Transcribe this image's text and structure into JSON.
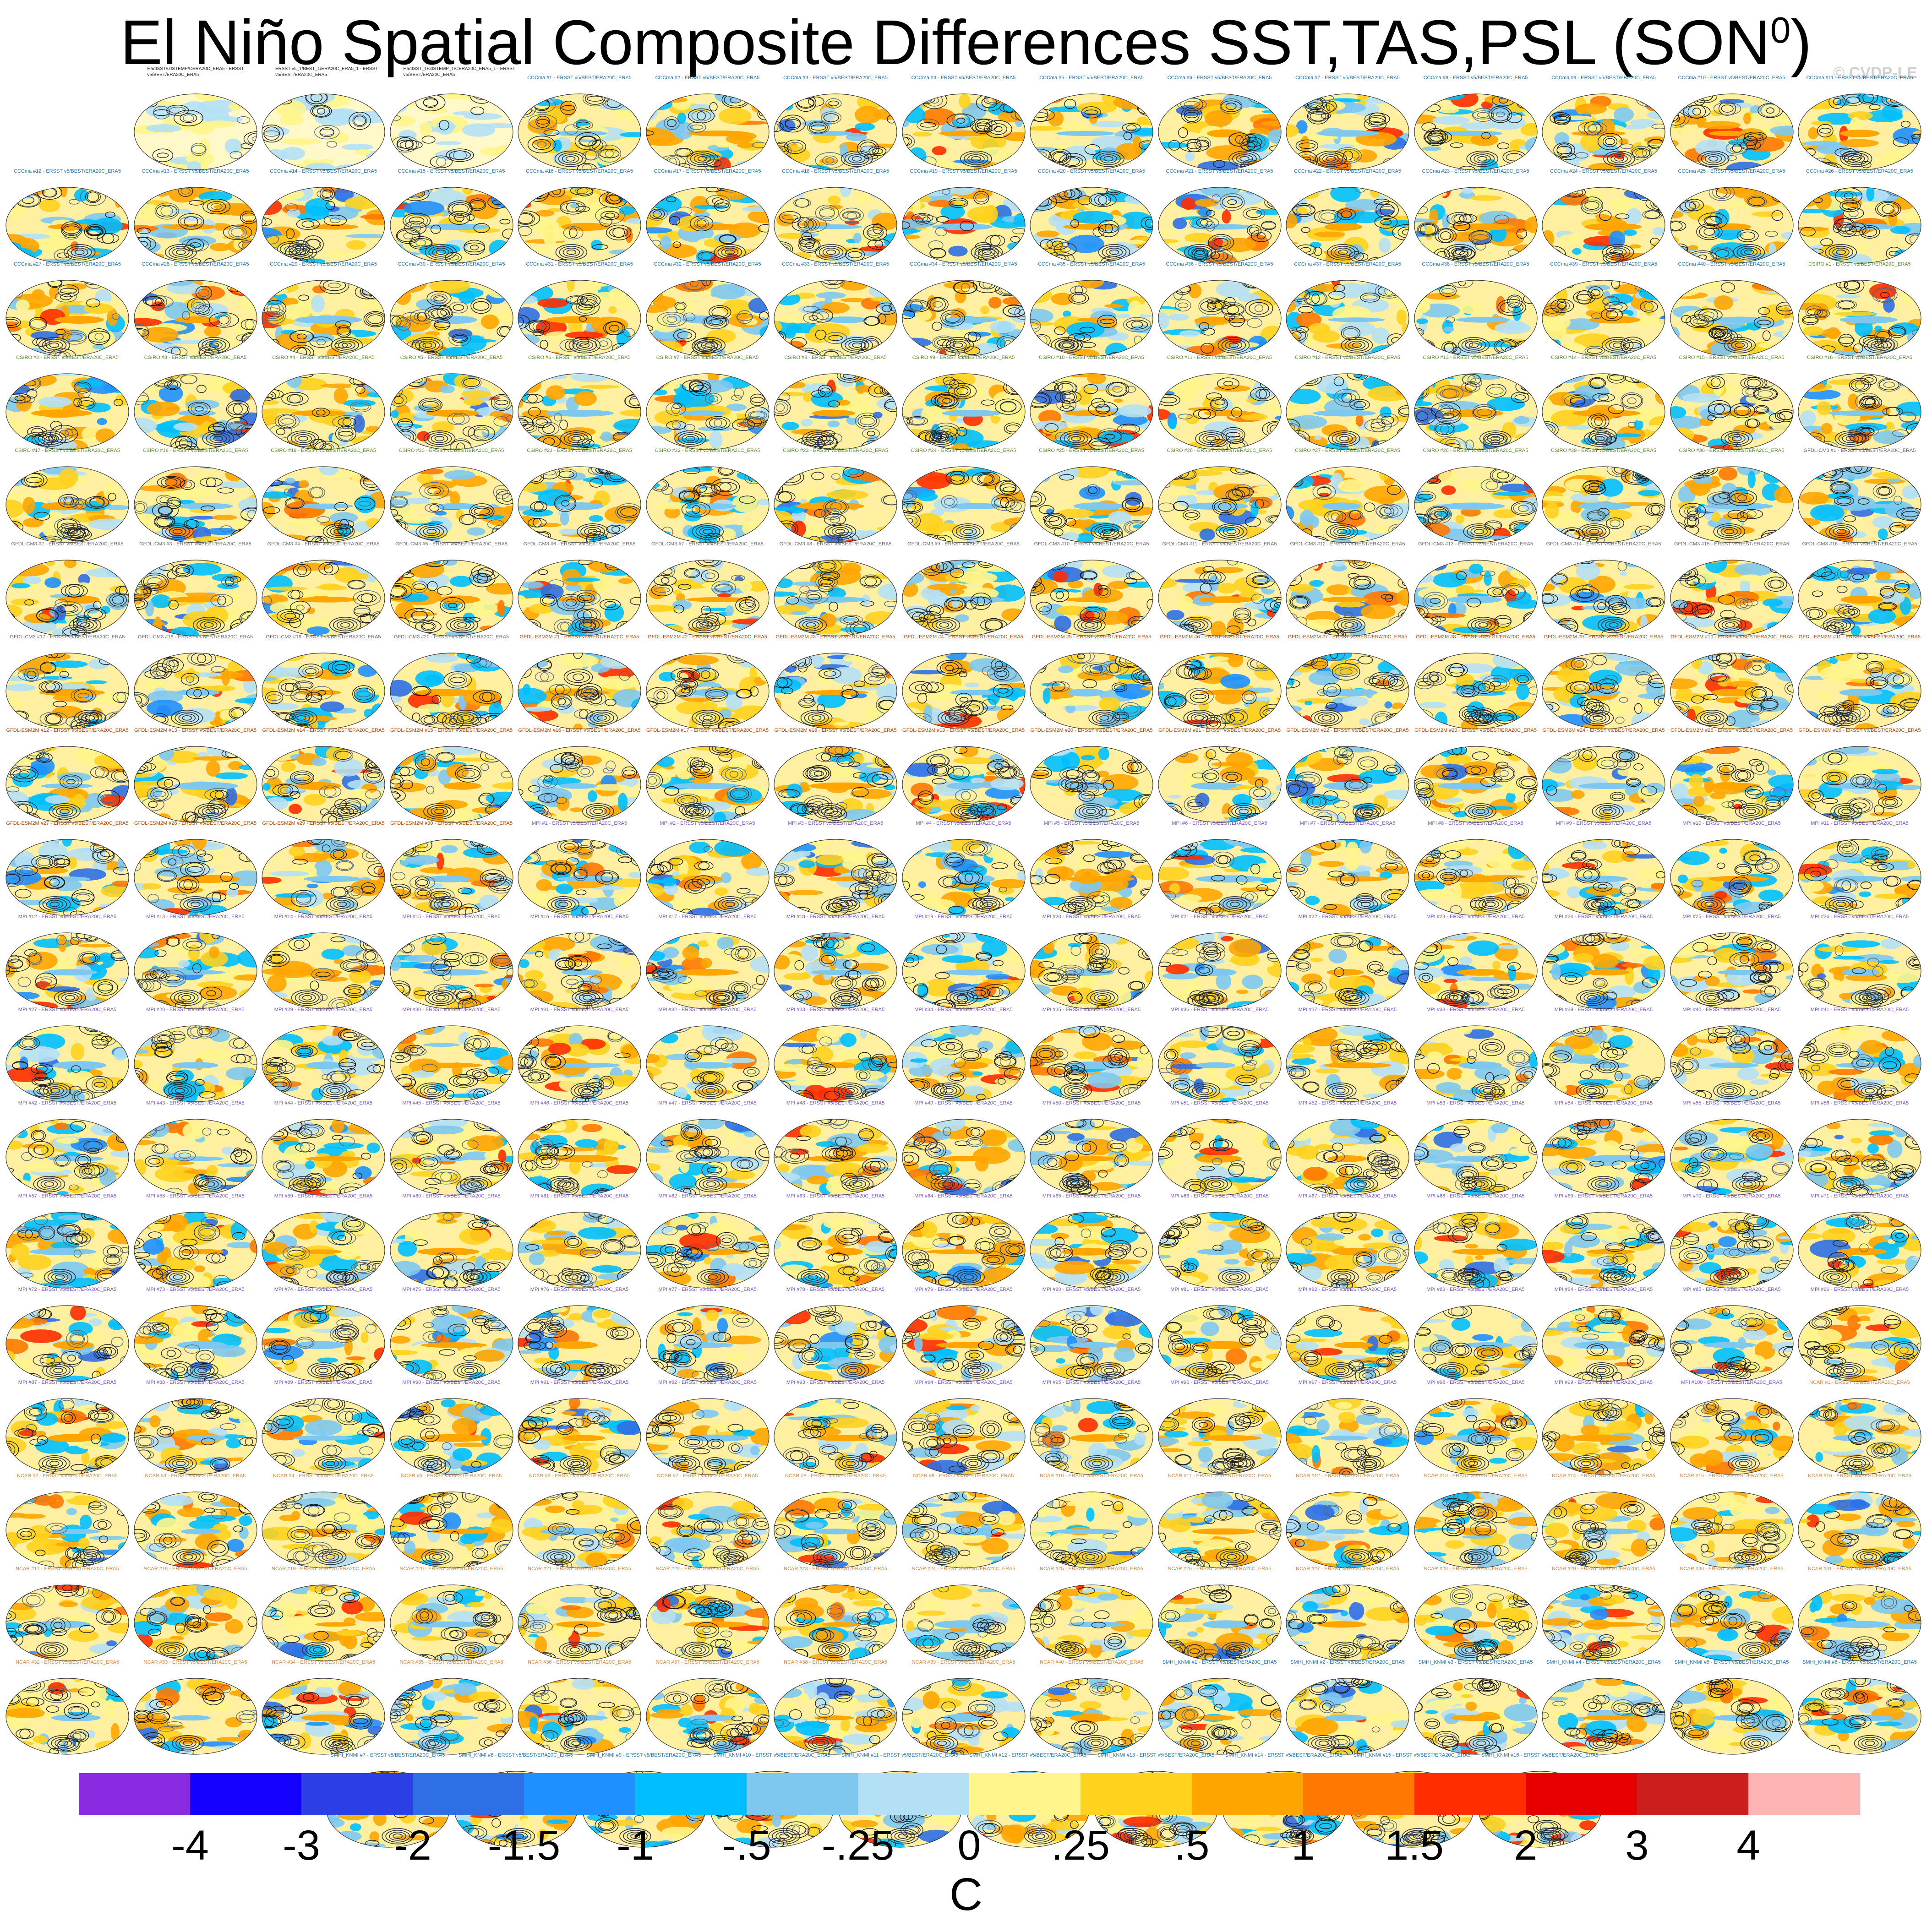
{
  "title": {
    "main": "El Niño Spatial Composite Differences SST,TAS,PSL (SON",
    "superscript": "0",
    "close": ")"
  },
  "watermark": "© CVDP-LE",
  "chart_data": {
    "type": "map-grid",
    "variables": [
      "SST",
      "TAS",
      "PSL"
    ],
    "season": "SON0",
    "observation_panels": [
      "HadISST/GISTEMP/CERA20C_ERA5 - ERSST v5/BEST/ERA20C_ERA5",
      "ERSST v5_1/BEST_1/ERA20C_ERA5_1 - ERSST v5/BEST/ERA20C_ERA5",
      "HadISST_1/GISTEMP_1/CERA20C_ERA5_1 - ERSST v5/BEST/ERA20C_ERA5"
    ],
    "ensembles": [
      {
        "model": "CCCma",
        "members": 40,
        "label_color": "#1f6fa8"
      },
      {
        "model": "CSIRO",
        "members": 30,
        "label_color": "#5a8a2a"
      },
      {
        "model": "GFDL-CM3",
        "members": 20,
        "label_color": "#6a6a6a"
      },
      {
        "model": "GFDL-ESM2M",
        "members": 30,
        "label_color": "#b34a00"
      },
      {
        "model": "MPI",
        "members": 100,
        "label_color": "#7a55c0"
      },
      {
        "model": "NCAR",
        "members": 40,
        "label_color": "#d08a3c"
      },
      {
        "model": "SMHI_KNMI",
        "members": 16,
        "label_color": "#1f6fa8"
      }
    ],
    "panel_label_suffix": "- ERSST v5/BEST/ERA20C_ERA5",
    "colorbar": {
      "units": "C",
      "tick_labels": [
        "-4",
        "-3",
        "-2",
        "-1.5",
        "-1",
        "-.5",
        "-.25",
        "0",
        ".25",
        ".5",
        "1",
        "1.5",
        "2",
        "3",
        "4"
      ],
      "colors": [
        "#8A2BE2",
        "#1400FF",
        "#2A3FE6",
        "#2E6FE6",
        "#1E90FF",
        "#00BFFF",
        "#7EC8F0",
        "#B4E0F5",
        "#FFF58C",
        "#FFD21E",
        "#FFA500",
        "#FF7800",
        "#FF2D00",
        "#E60000",
        "#CD1E1E",
        "#FFB4B4"
      ]
    }
  }
}
